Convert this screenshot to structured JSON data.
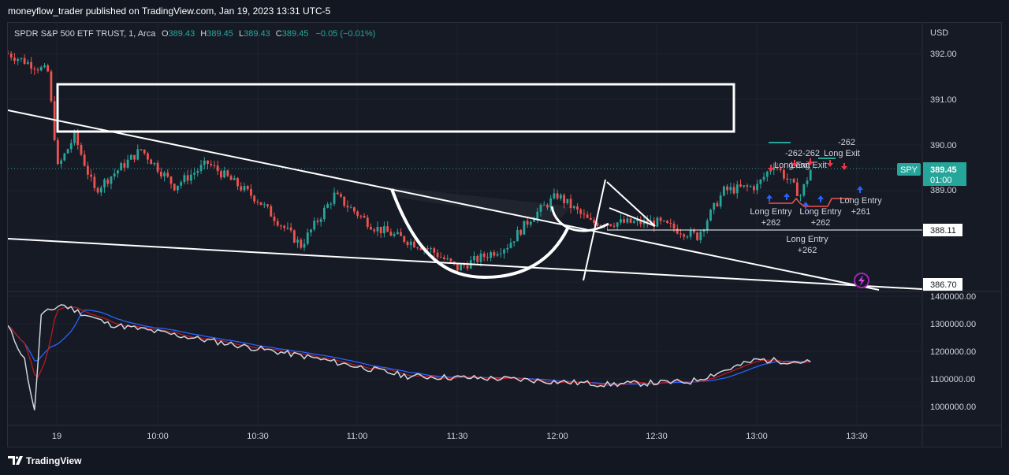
{
  "header": {
    "published_text": "moneyflow_trader published on TradingView.com, Jan 19, 2023 13:31 UTC-5"
  },
  "legend": {
    "symbol": "SPDR S&P 500 ETF TRUST, 1, Arca",
    "o_label": "O",
    "o_value": "389.43",
    "h_label": "H",
    "h_value": "389.45",
    "l_label": "L",
    "l_value": "389.43",
    "c_label": "C",
    "c_value": "389.45",
    "change": "−0.05 (−0.01%)"
  },
  "price_axis": {
    "currency": "USD",
    "ticks": [
      "392.00",
      "391.00",
      "390.00",
      "389.00"
    ],
    "badges": {
      "symbol": "SPY",
      "last_price": "389.45",
      "countdown": "01:00",
      "level_1": "388.11",
      "level_2": "386.70"
    }
  },
  "volume_axis": {
    "ticks": [
      "1400000.00",
      "1300000.00",
      "1200000.00",
      "1100000.00",
      "1000000.00"
    ]
  },
  "time_axis": {
    "ticks": [
      "19",
      "10:00",
      "10:30",
      "11:00",
      "11:30",
      "12:00",
      "12:30",
      "13:00",
      "13:30"
    ]
  },
  "signals": {
    "minus_a": "-262",
    "minus_b": "-262-262",
    "long_exit_a": "Long Exit",
    "long_exit_b": "Long Exit",
    "long_exit_c": "Long Exit",
    "entry_a_title": "Long Entry",
    "entry_a_val": "+262",
    "entry_b_title": "Long Entry",
    "entry_b_val": "+262",
    "entry_c_title": "Long Entry",
    "entry_c_val": "+262",
    "entry_d_title": "Long Entry",
    "entry_d_val": "+261"
  },
  "footer": {
    "brand": "TradingView"
  },
  "colors": {
    "background": "#131722",
    "up": "#26a69a",
    "down": "#ef5350",
    "drawing": "#ffffff",
    "oscillator": "#d1d4dc",
    "signal_red": "#b71c1c",
    "signal_blue": "#2962ff"
  },
  "chart_data": [
    {
      "type": "candlestick",
      "symbol": "SPY",
      "interval": "1 minute",
      "x_range": [
        "09:30",
        "13:31"
      ],
      "ylim": [
        386.5,
        392.3
      ],
      "close_path": [
        {
          "t": "09:30",
          "close": 392.0
        },
        {
          "t": "09:42",
          "close": 391.6
        },
        {
          "t": "09:45",
          "close": 389.5
        },
        {
          "t": "09:50",
          "close": 390.2
        },
        {
          "t": "09:56",
          "close": 389.0
        },
        {
          "t": "10:10",
          "close": 389.9
        },
        {
          "t": "10:20",
          "close": 389.1
        },
        {
          "t": "10:30",
          "close": 389.6
        },
        {
          "t": "10:45",
          "close": 388.8
        },
        {
          "t": "10:58",
          "close": 387.8
        },
        {
          "t": "11:08",
          "close": 388.9
        },
        {
          "t": "11:20",
          "close": 388.2
        },
        {
          "t": "11:37",
          "close": 387.7
        },
        {
          "t": "11:45",
          "close": 387.3
        },
        {
          "t": "12:00",
          "close": 387.8
        },
        {
          "t": "12:07",
          "close": 388.4
        },
        {
          "t": "12:15",
          "close": 388.9
        },
        {
          "t": "12:25",
          "close": 388.3
        },
        {
          "t": "12:45",
          "close": 388.3
        },
        {
          "t": "12:57",
          "close": 388.0
        },
        {
          "t": "13:05",
          "close": 389.0
        },
        {
          "t": "13:15",
          "close": 389.1
        },
        {
          "t": "13:20",
          "close": 389.6
        },
        {
          "t": "13:28",
          "close": 388.9
        },
        {
          "t": "13:31",
          "close": 389.45
        }
      ],
      "last": {
        "open": 389.43,
        "high": 389.45,
        "low": 389.43,
        "close": 389.45,
        "change": -0.05,
        "change_pct": -0.01
      },
      "horizontal_levels": [
        388.11,
        386.7
      ]
    },
    {
      "type": "line",
      "series": [
        {
          "points": [
            {
              "t": "09:30",
              "value": 1290000
            },
            {
              "t": "09:35",
              "value": 1170000
            },
            {
              "t": "09:38",
              "value": 980000
            },
            {
              "t": "09:40",
              "value": 1330000
            },
            {
              "t": "09:46",
              "value": 1370000
            },
            {
              "t": "10:00",
              "value": 1300000
            },
            {
              "t": "10:30",
              "value": 1240000
            },
            {
              "t": "11:00",
              "value": 1180000
            },
            {
              "t": "11:30",
              "value": 1110000
            },
            {
              "t": "12:00",
              "value": 1100000
            },
            {
              "t": "12:30",
              "value": 1080000
            },
            {
              "t": "12:55",
              "value": 1090000
            },
            {
              "t": "13:15",
              "value": 1170000
            },
            {
              "t": "13:31",
              "value": 1160000
            }
          ]
        }
      ],
      "ylim": [
        970000,
        1400000
      ]
    }
  ]
}
